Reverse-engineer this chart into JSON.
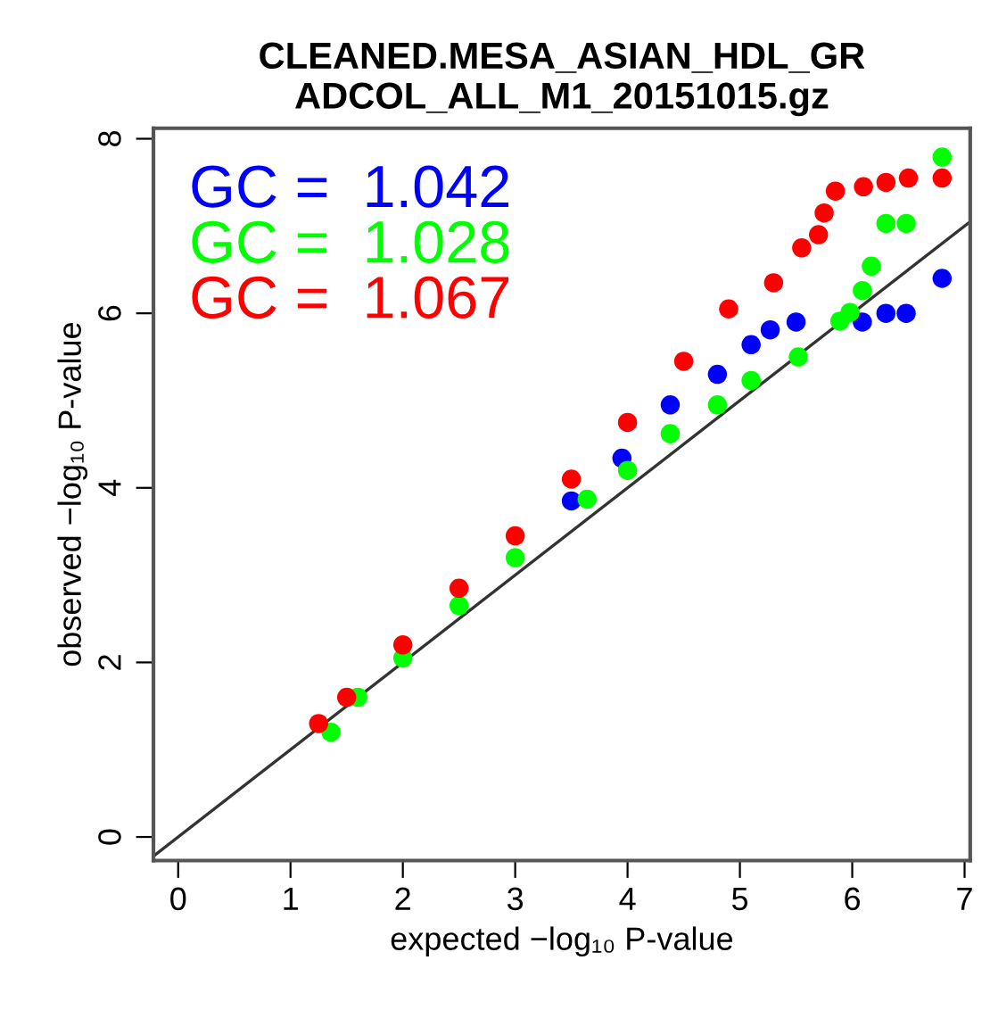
{
  "chart_data": {
    "type": "scatter",
    "title": "CLEANED.MESA_ASIAN_HDL_GR\nADCOL_ALL_M1_20151015.gz",
    "xlabel": "expected −log₁₀ P-value",
    "ylabel": "observed −log₁₀ P-value",
    "xlim": [
      -0.22,
      7.05
    ],
    "ylim": [
      -0.27,
      8.12
    ],
    "xticks": [
      0,
      1,
      2,
      3,
      4,
      5,
      6,
      7
    ],
    "yticks": [
      0,
      2,
      4,
      6,
      8
    ],
    "grid": false,
    "legend": "top left",
    "marker": "circle",
    "series": [
      {
        "type": "line",
        "color": "#333333",
        "x": [
          -0.22,
          7.05
        ],
        "values": [
          -0.22,
          7.05
        ],
        "marker": "none"
      },
      {
        "name": "GC =  1.042",
        "color": "#0000ff",
        "x": [
          3.5,
          3.95,
          4.38,
          4.8,
          5.1,
          5.27,
          5.5,
          6.09,
          6.3,
          6.48,
          6.8
        ],
        "values": [
          3.85,
          4.34,
          4.95,
          5.3,
          5.64,
          5.81,
          5.9,
          5.9,
          6.0,
          6.0,
          6.4
        ]
      },
      {
        "name": "GC =  1.028",
        "color": "#00ff00",
        "x": [
          1.36,
          1.6,
          2.0,
          2.5,
          3.0,
          3.64,
          4.0,
          4.38,
          4.8,
          5.1,
          5.52,
          5.89,
          5.98,
          6.09,
          6.17,
          6.3,
          6.48,
          6.8
        ],
        "values": [
          1.2,
          1.6,
          2.05,
          2.65,
          3.2,
          3.87,
          4.2,
          4.62,
          4.95,
          5.23,
          5.5,
          5.91,
          6.01,
          6.26,
          6.54,
          7.03,
          7.03,
          7.79
        ]
      },
      {
        "name": "GC =  1.067",
        "color": "#ff0000",
        "x": [
          1.25,
          1.5,
          2.0,
          2.5,
          3.0,
          3.5,
          4.0,
          4.5,
          4.9,
          5.3,
          5.55,
          5.7,
          5.75,
          5.85,
          6.1,
          6.3,
          6.5,
          6.8
        ],
        "values": [
          1.3,
          1.6,
          2.2,
          2.85,
          3.45,
          4.1,
          4.75,
          5.45,
          6.05,
          6.35,
          6.75,
          6.9,
          7.15,
          7.4,
          7.45,
          7.5,
          7.55,
          7.55
        ]
      }
    ]
  }
}
